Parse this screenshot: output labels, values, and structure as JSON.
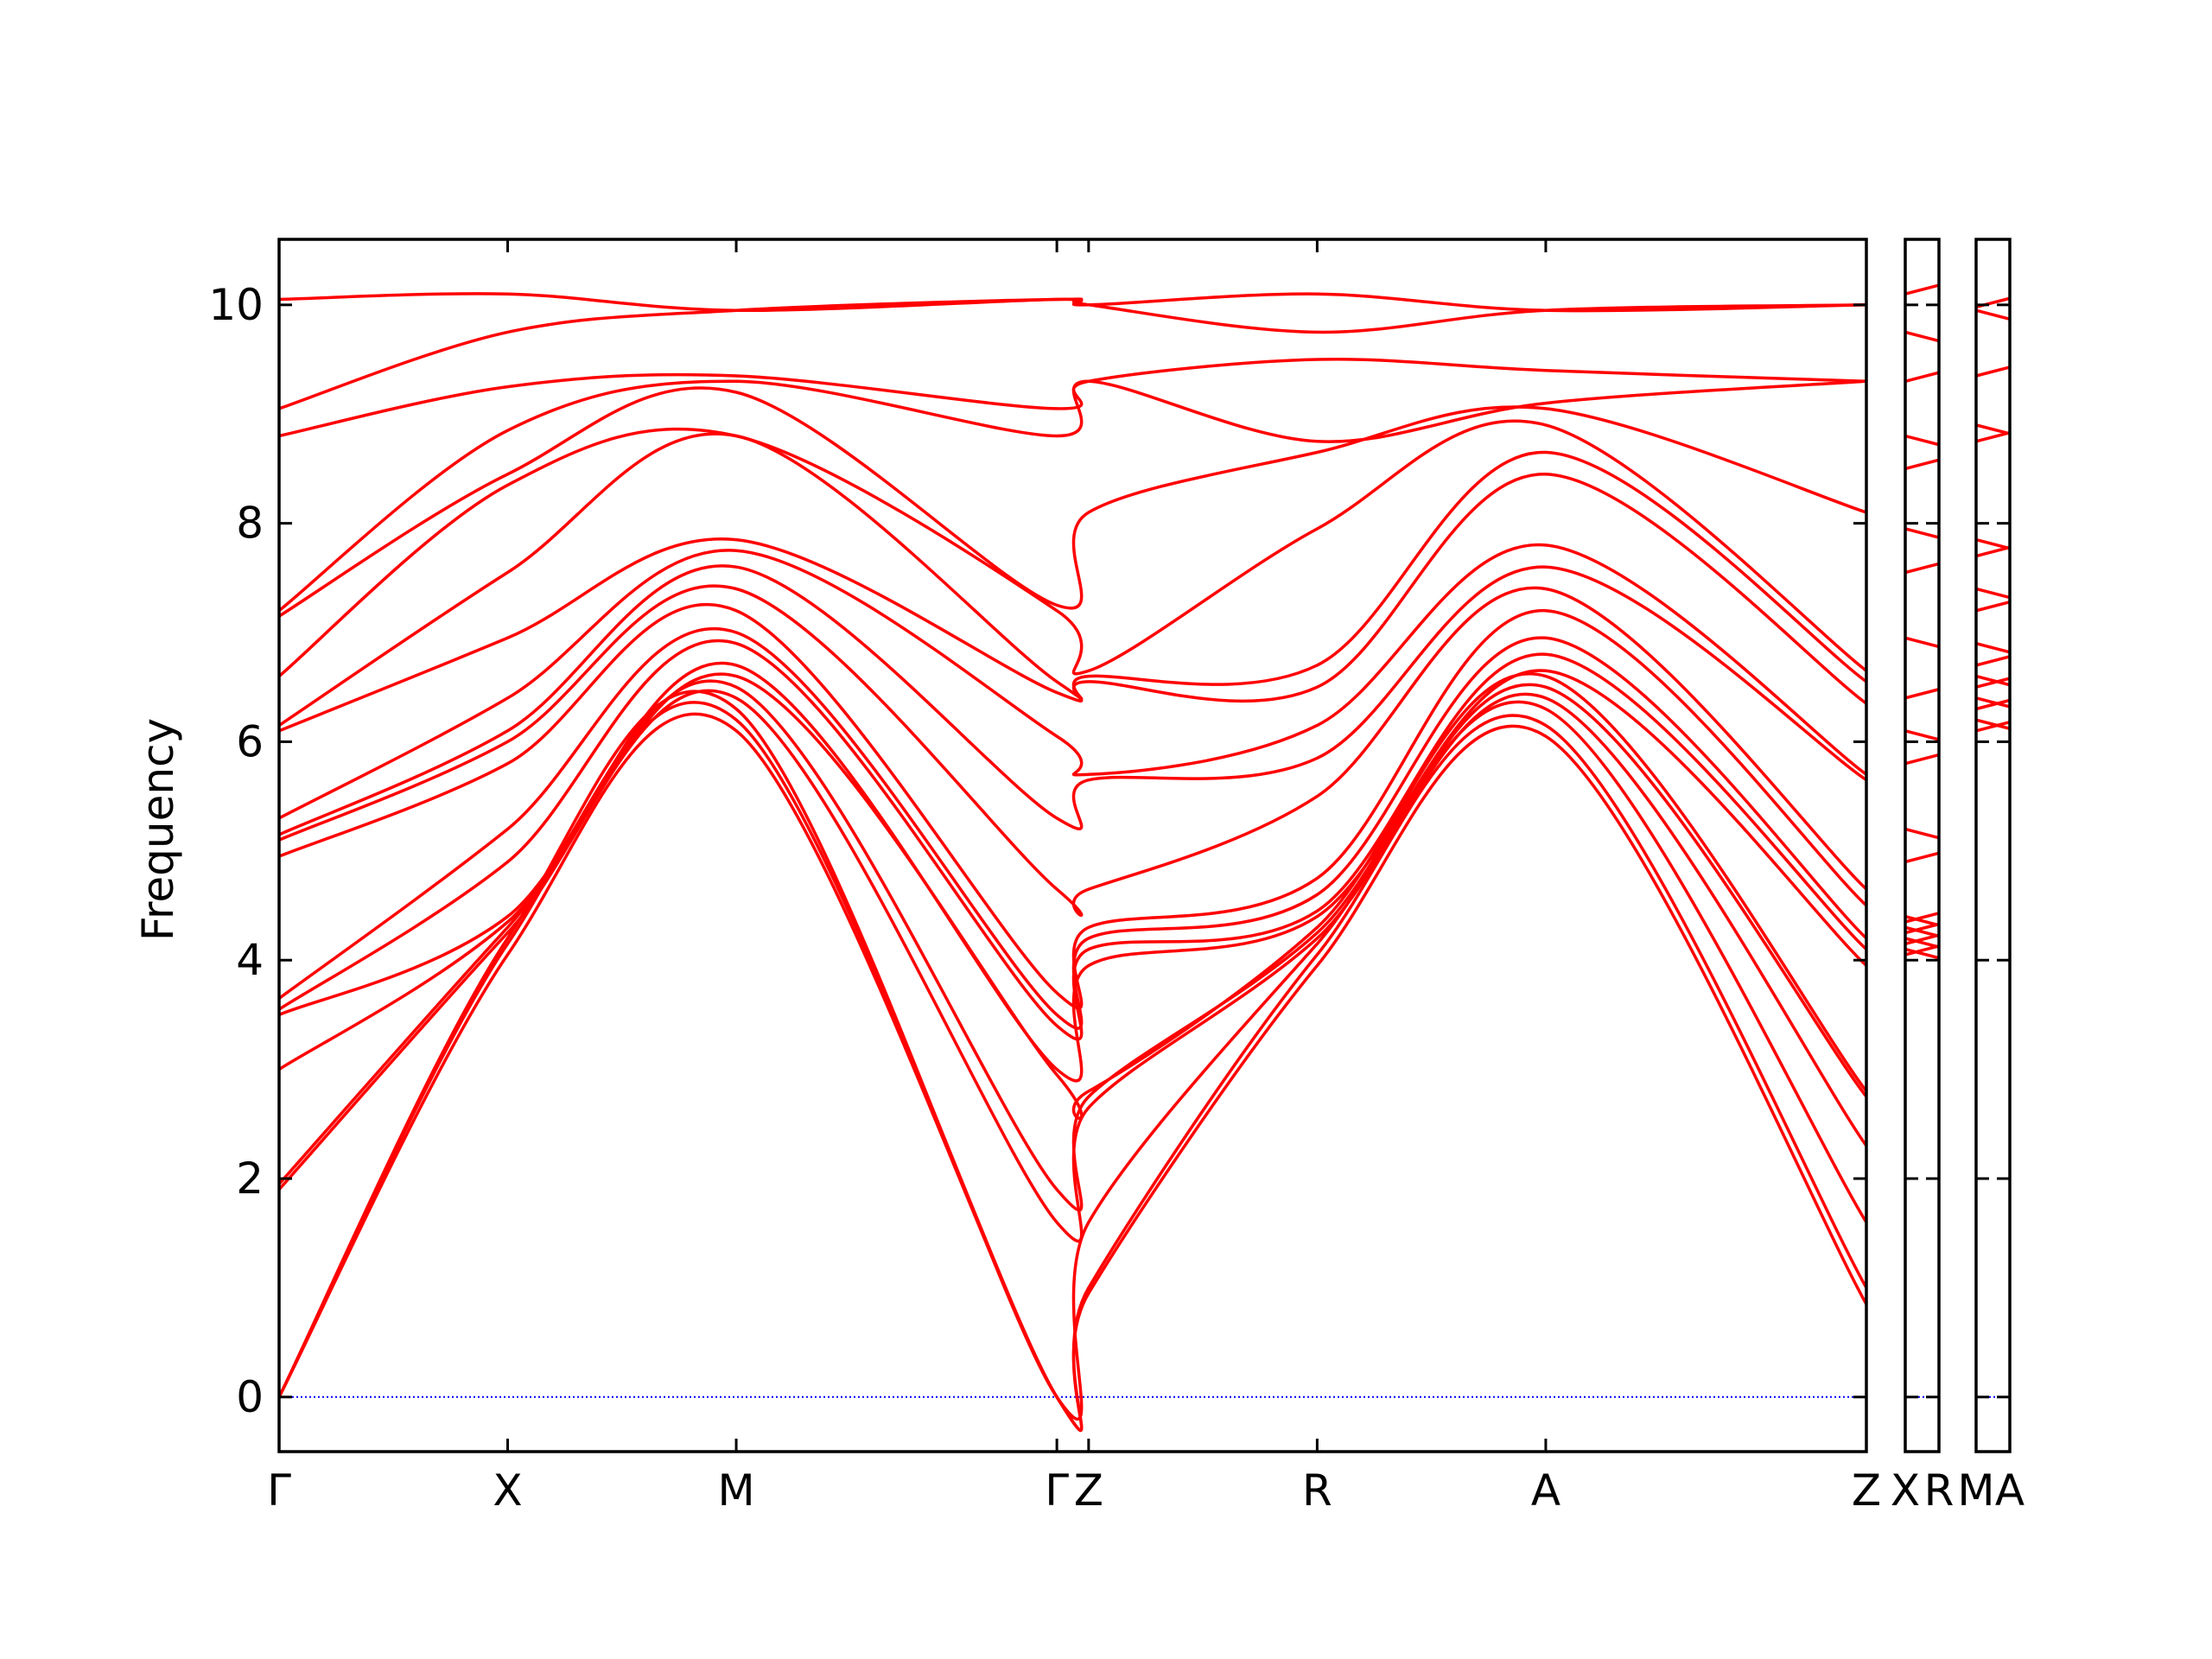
{
  "chart_data": {
    "type": "line",
    "title": "",
    "xlabel": "",
    "ylabel": "Frequency",
    "ylim": [
      -0.5,
      10.6
    ],
    "yticks": [
      0,
      2,
      4,
      6,
      8,
      10
    ],
    "grid": false,
    "legend": "none",
    "colors": {
      "bands": "#ff0000",
      "zero_line": "#0000ff",
      "axes": "#000000"
    },
    "panels": [
      {
        "path": "Γ-X-M-Γ-Z-R-A-Z",
        "xticks": [
          {
            "label": "Γ",
            "x": 0.0
          },
          {
            "label": "X",
            "x": 0.144
          },
          {
            "label": "M",
            "x": 0.288
          },
          {
            "label": "Γ",
            "x": 0.49
          },
          {
            "label": "Z",
            "x": 0.51
          },
          {
            "label": "R",
            "x": 0.654
          },
          {
            "label": "A",
            "x": 0.798
          },
          {
            "label": "Z",
            "x": 1.0
          }
        ]
      },
      {
        "path": "X-R",
        "xticks": [
          {
            "label": "X",
            "x": 0.0
          },
          {
            "label": "R",
            "x": 1.0
          }
        ]
      },
      {
        "path": "M-A",
        "xticks": [
          {
            "label": "M",
            "x": 0.0
          },
          {
            "label": "A",
            "x": 1.0
          }
        ]
      }
    ],
    "bands_main": [
      {
        "x": [
          0,
          0.144,
          0.288,
          0.49,
          0.51,
          0.654,
          0.798,
          1.0
        ],
        "y": [
          0.0,
          4.05,
          6.1,
          0.0,
          0.95,
          3.95,
          6.05,
          0.85
        ]
      },
      {
        "x": [
          0,
          0.144,
          0.288,
          0.49,
          0.51,
          0.654,
          0.798,
          1.0
        ],
        "y": [
          0.0,
          4.15,
          6.2,
          0.0,
          1.0,
          4.05,
          6.15,
          1.0
        ]
      },
      {
        "x": [
          0,
          0.144,
          0.288,
          0.49,
          0.51,
          0.654,
          0.798,
          1.0
        ],
        "y": [
          0.0,
          4.2,
          6.3,
          0.0,
          1.6,
          4.15,
          6.3,
          1.6
        ]
      },
      {
        "x": [
          0,
          0.144,
          0.288,
          0.49,
          0.51,
          0.654,
          0.798,
          1.0
        ],
        "y": [
          1.9,
          4.25,
          6.4,
          1.6,
          2.65,
          4.2,
          6.4,
          2.3
        ]
      },
      {
        "x": [
          0,
          0.144,
          0.288,
          0.49,
          0.51,
          0.654,
          0.798,
          1.0
        ],
        "y": [
          1.95,
          4.3,
          6.5,
          1.9,
          2.75,
          4.25,
          6.5,
          2.75
        ]
      },
      {
        "x": [
          0,
          0.144,
          0.288,
          0.49,
          0.51,
          0.654,
          0.798,
          1.0
        ],
        "y": [
          3.0,
          4.35,
          6.6,
          2.95,
          2.8,
          4.3,
          6.6,
          2.8
        ]
      },
      {
        "x": [
          0,
          0.144,
          0.288,
          0.49,
          0.51,
          0.654,
          0.798,
          1.0
        ],
        "y": [
          3.5,
          4.4,
          6.7,
          3.0,
          3.95,
          4.4,
          6.65,
          3.95
        ]
      },
      {
        "x": [
          0,
          0.144,
          0.288,
          0.49,
          0.51,
          0.654,
          0.798,
          1.0
        ],
        "y": [
          3.55,
          4.9,
          6.9,
          3.4,
          4.1,
          4.45,
          6.8,
          4.1
        ]
      },
      {
        "x": [
          0,
          0.144,
          0.288,
          0.49,
          0.51,
          0.654,
          0.798,
          1.0
        ],
        "y": [
          3.65,
          5.2,
          7.0,
          3.5,
          4.2,
          4.6,
          6.95,
          4.2
        ]
      },
      {
        "x": [
          0,
          0.144,
          0.288,
          0.49,
          0.51,
          0.654,
          0.798,
          1.0
        ],
        "y": [
          4.95,
          5.8,
          7.2,
          3.7,
          4.3,
          4.75,
          7.2,
          4.5
        ]
      },
      {
        "x": [
          0,
          0.144,
          0.288,
          0.49,
          0.51,
          0.654,
          0.798,
          1.0
        ],
        "y": [
          5.1,
          6.0,
          7.4,
          4.65,
          4.65,
          5.5,
          7.4,
          4.65
        ]
      },
      {
        "x": [
          0,
          0.144,
          0.288,
          0.49,
          0.51,
          0.654,
          0.798,
          1.0
        ],
        "y": [
          5.15,
          6.1,
          7.6,
          5.3,
          5.65,
          5.85,
          7.6,
          5.65
        ]
      },
      {
        "x": [
          0,
          0.144,
          0.288,
          0.49,
          0.51,
          0.654,
          0.798,
          1.0
        ],
        "y": [
          5.3,
          6.4,
          7.75,
          6.05,
          5.7,
          6.15,
          7.8,
          5.7
        ]
      },
      {
        "x": [
          0,
          0.144,
          0.288,
          0.49,
          0.51,
          0.654,
          0.798,
          1.0
        ],
        "y": [
          6.1,
          6.95,
          7.85,
          6.45,
          6.55,
          6.5,
          8.45,
          6.35
        ]
      },
      {
        "x": [
          0,
          0.144,
          0.288,
          0.49,
          0.51,
          0.654,
          0.798,
          1.0
        ],
        "y": [
          6.15,
          7.55,
          8.8,
          6.55,
          6.6,
          6.7,
          8.65,
          6.55
        ]
      },
      {
        "x": [
          0,
          0.144,
          0.288,
          0.49,
          0.51,
          0.654,
          0.798,
          1.0
        ],
        "y": [
          6.6,
          8.35,
          8.8,
          7.2,
          6.65,
          7.95,
          8.9,
          6.65
        ]
      },
      {
        "x": [
          0,
          0.144,
          0.288,
          0.49,
          0.51,
          0.654,
          0.798,
          1.0
        ],
        "y": [
          7.15,
          8.45,
          9.2,
          7.25,
          8.1,
          8.65,
          9.05,
          8.1
        ]
      },
      {
        "x": [
          0,
          0.144,
          0.288,
          0.49,
          0.51,
          0.654,
          0.798,
          1.0
        ],
        "y": [
          7.2,
          8.85,
          9.3,
          8.8,
          9.3,
          8.75,
          9.1,
          9.3
        ]
      },
      {
        "x": [
          0,
          0.144,
          0.288,
          0.49,
          0.51,
          0.654,
          0.798,
          1.0
        ],
        "y": [
          8.8,
          9.25,
          9.35,
          9.05,
          9.3,
          9.5,
          9.4,
          9.3
        ]
      },
      {
        "x": [
          0,
          0.144,
          0.288,
          0.49,
          0.51,
          0.654,
          0.798,
          1.0
        ],
        "y": [
          9.05,
          9.75,
          9.95,
          10.05,
          10.0,
          9.75,
          9.95,
          10.0
        ]
      },
      {
        "x": [
          0,
          0.144,
          0.288,
          0.49,
          0.51,
          0.654,
          0.798,
          1.0
        ],
        "y": [
          10.05,
          10.1,
          9.95,
          10.05,
          10.0,
          10.1,
          9.95,
          10.0
        ]
      }
    ],
    "segments_xr": [
      {
        "y": 10.1
      },
      {
        "y": 9.75
      },
      {
        "y": 9.3
      },
      {
        "y": 8.8
      },
      {
        "y": 8.5
      },
      {
        "y": 7.95
      },
      {
        "y": 7.55
      },
      {
        "y": 6.95
      },
      {
        "y": 6.4
      },
      {
        "y": 6.1
      },
      {
        "y": 5.8
      },
      {
        "y": 5.2
      },
      {
        "y": 4.9
      },
      {
        "y": 4.4
      },
      {
        "y": 4.35
      },
      {
        "y": 4.3
      },
      {
        "y": 4.25
      },
      {
        "y": 4.2
      },
      {
        "y": 4.15
      },
      {
        "y": 4.1
      },
      {
        "y": 4.05
      }
    ],
    "segments_ma": [
      {
        "y": 9.98
      },
      {
        "y": 9.95
      },
      {
        "y": 9.35
      },
      {
        "y": 8.9
      },
      {
        "y": 8.75
      },
      {
        "y": 7.85
      },
      {
        "y": 7.7
      },
      {
        "y": 7.4
      },
      {
        "y": 7.2
      },
      {
        "y": 6.9
      },
      {
        "y": 6.7
      },
      {
        "y": 6.6
      },
      {
        "y": 6.5
      },
      {
        "y": 6.4
      },
      {
        "y": 6.3
      },
      {
        "y": 6.2
      },
      {
        "y": 6.1
      }
    ]
  }
}
